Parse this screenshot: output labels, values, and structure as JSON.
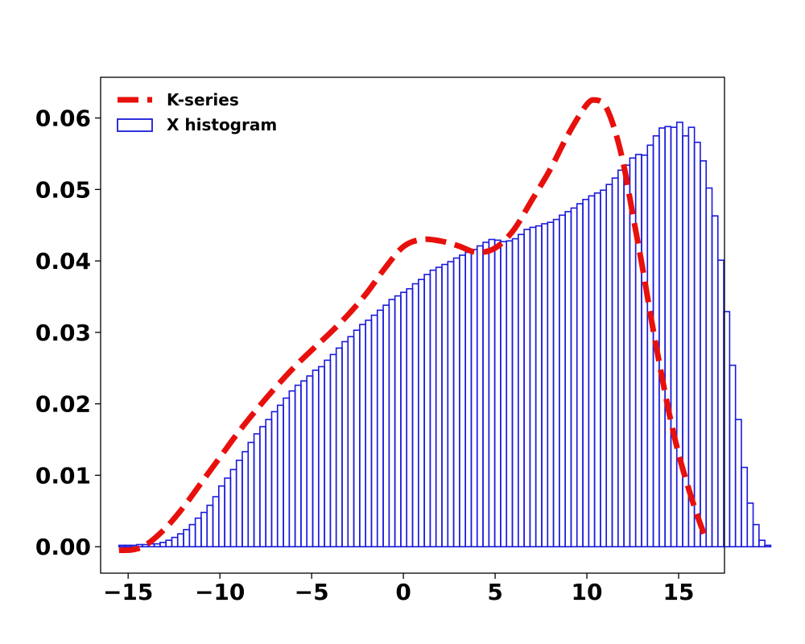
{
  "chart_data": {
    "type": "bar",
    "title": "",
    "xlabel": "",
    "ylabel": "",
    "xlim": [
      -16.5,
      17.5
    ],
    "ylim": [
      -0.0037,
      0.0657
    ],
    "xticks": [
      -15,
      -10,
      -5,
      0,
      5,
      10,
      15
    ],
    "xtick_labels": [
      "−15",
      "−10",
      "−5",
      "0",
      "5",
      "10",
      "15"
    ],
    "yticks": [
      0.0,
      0.01,
      0.02,
      0.03,
      0.04,
      0.05,
      0.06
    ],
    "ytick_labels": [
      "0.00",
      "0.01",
      "0.02",
      "0.03",
      "0.04",
      "0.05",
      "0.06"
    ],
    "grid": false,
    "legend_position": "top-left",
    "series": [
      {
        "name": "K-series",
        "kind": "line",
        "style": "dashed",
        "color": "#e8100c",
        "x": [
          -15.5,
          -14.7,
          -14,
          -13,
          -12,
          -11,
          -10,
          -9,
          -8,
          -7,
          -6,
          -5,
          -4,
          -3,
          -2,
          -1,
          0,
          1,
          2,
          3,
          4,
          5,
          6,
          7,
          8,
          9,
          10,
          10.5,
          11,
          11.5,
          12,
          12.5,
          13,
          13.5,
          14,
          14.5,
          15,
          15.5,
          16,
          16.5
        ],
        "y": [
          -0.0005,
          -0.0004,
          0.0003,
          0.0025,
          0.0055,
          0.009,
          0.0125,
          0.016,
          0.0192,
          0.0222,
          0.025,
          0.0275,
          0.0299,
          0.0325,
          0.0355,
          0.039,
          0.042,
          0.043,
          0.0428,
          0.0421,
          0.0412,
          0.0418,
          0.0443,
          0.0485,
          0.0528,
          0.0578,
          0.0619,
          0.0625,
          0.0617,
          0.0585,
          0.0535,
          0.0465,
          0.0395,
          0.032,
          0.025,
          0.0185,
          0.013,
          0.0085,
          0.0045,
          0.001
        ]
      },
      {
        "name": "X histogram",
        "kind": "histogram",
        "color": "#1a1adb",
        "bin_start": -15.5,
        "bin_width": 0.32,
        "values": [
          0.0002,
          0.0002,
          0.0002,
          0.0003,
          0.0003,
          0.0004,
          0.0004,
          0.0006,
          0.0009,
          0.0013,
          0.0018,
          0.0024,
          0.0031,
          0.004,
          0.0048,
          0.0058,
          0.007,
          0.0085,
          0.0096,
          0.0108,
          0.0121,
          0.0133,
          0.0146,
          0.0158,
          0.0168,
          0.0178,
          0.0189,
          0.0198,
          0.0208,
          0.0218,
          0.0226,
          0.0232,
          0.0239,
          0.0247,
          0.0252,
          0.0261,
          0.0269,
          0.0278,
          0.0287,
          0.0294,
          0.0303,
          0.0311,
          0.0317,
          0.0324,
          0.0331,
          0.0338,
          0.0346,
          0.0351,
          0.0356,
          0.0361,
          0.0368,
          0.0374,
          0.0381,
          0.0387,
          0.0391,
          0.0395,
          0.0399,
          0.0404,
          0.0408,
          0.0412,
          0.0416,
          0.0421,
          0.0426,
          0.043,
          0.0429,
          0.0427,
          0.0428,
          0.0431,
          0.0437,
          0.0444,
          0.0447,
          0.0449,
          0.0452,
          0.0454,
          0.0458,
          0.0464,
          0.0469,
          0.0474,
          0.048,
          0.0486,
          0.0491,
          0.0495,
          0.0499,
          0.0507,
          0.0516,
          0.0527,
          0.0534,
          0.0544,
          0.0549,
          0.0548,
          0.0562,
          0.0575,
          0.0586,
          0.0588,
          0.0587,
          0.0594,
          0.0575,
          0.0587,
          0.0566,
          0.054,
          0.0502,
          0.0463,
          0.0401,
          0.0329,
          0.0254,
          0.0178,
          0.0111,
          0.0061,
          0.0031,
          0.0009,
          0.0002
        ]
      }
    ]
  }
}
